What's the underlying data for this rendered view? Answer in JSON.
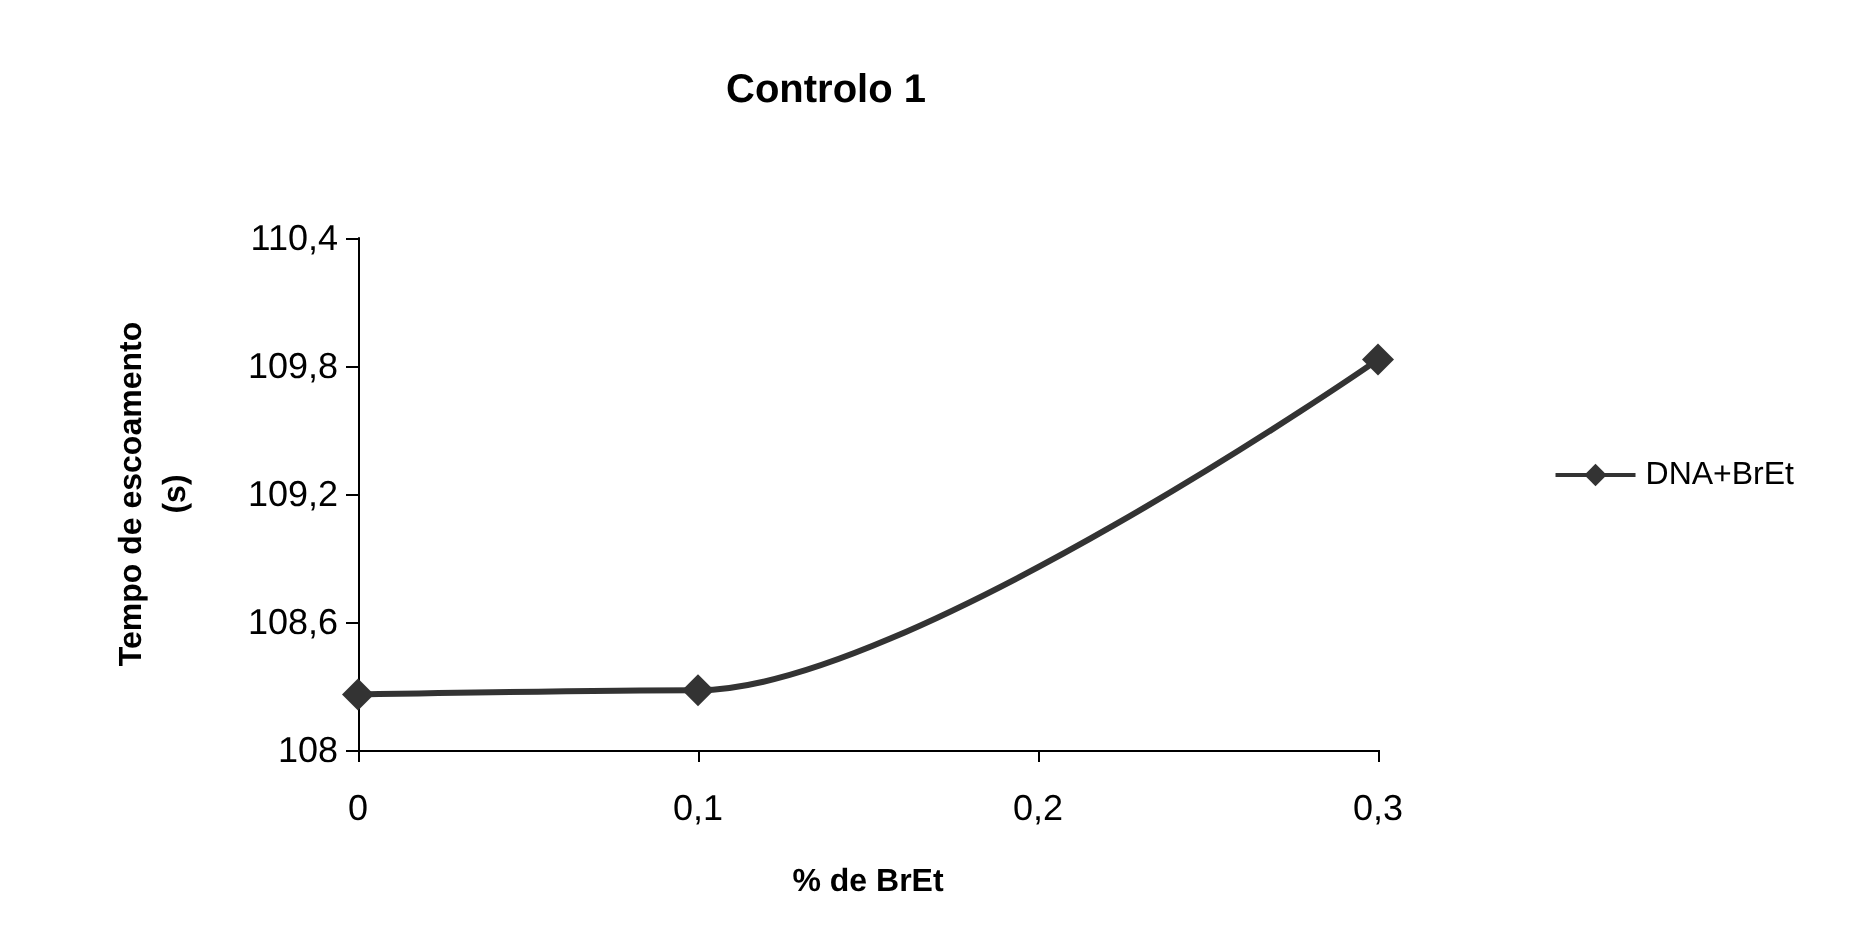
{
  "chart_data": {
    "type": "line",
    "title": "Controlo 1",
    "xlabel": "% de BrEt",
    "ylabel": "Tempo de escoamento\n(s)",
    "x": [
      0,
      0.1,
      0.3
    ],
    "series": [
      {
        "name": "DNA+BrEt",
        "color": "#333333",
        "values": [
          108.26,
          108.28,
          109.83
        ]
      }
    ],
    "xlim": [
      0,
      0.3
    ],
    "xticks": [
      0,
      {
        "value": 0.1,
        "label": "0,1"
      },
      {
        "value": 0.2,
        "label": "0,2"
      },
      {
        "value": 0.3,
        "label": "0,3"
      }
    ],
    "ylim": [
      108,
      110.4
    ],
    "yticks": [
      108,
      {
        "value": 108.6,
        "label": "108,6"
      },
      {
        "value": 109.2,
        "label": "109,2"
      },
      {
        "value": 109.8,
        "label": "109,8"
      },
      {
        "value": 110.4,
        "label": "110,4"
      }
    ],
    "grid": false,
    "legend": "right",
    "marker": "diamond",
    "line_style": "solid"
  }
}
